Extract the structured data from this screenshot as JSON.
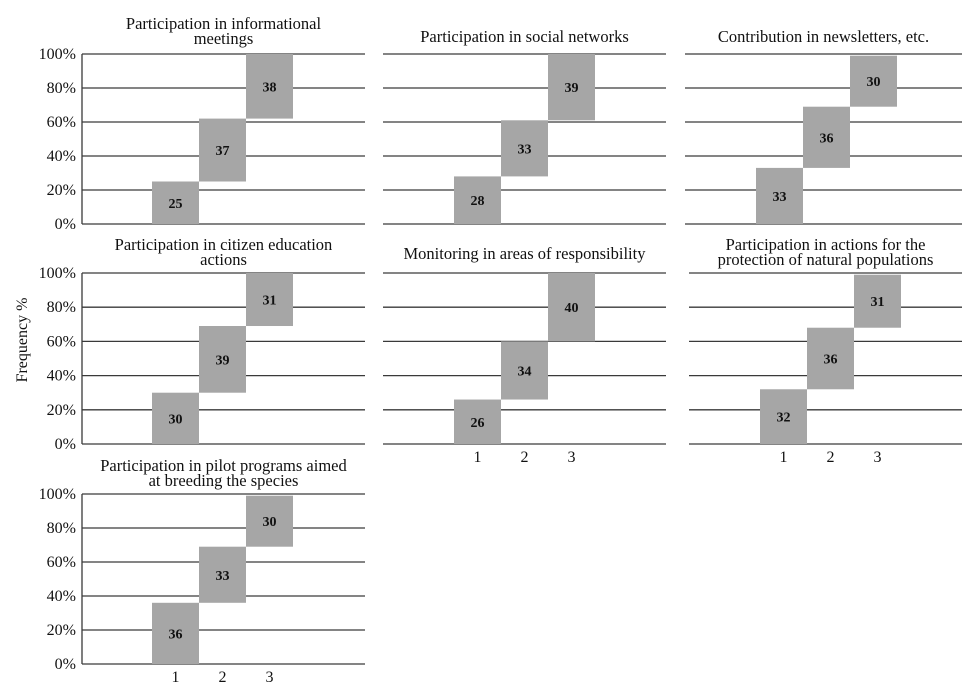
{
  "y_axis_label": "Frequency %",
  "chart_data": [
    {
      "type": "bar",
      "title": "Participation in informational meetings",
      "categories": [
        "1",
        "2",
        "3"
      ],
      "values": [
        25,
        37,
        38
      ],
      "yticks": [
        "0%",
        "20%",
        "40%",
        "60%",
        "80%",
        "100%"
      ],
      "xticks_shown": false,
      "ylim": [
        0,
        100
      ],
      "grid": true
    },
    {
      "type": "bar",
      "title": "Participation in social networks",
      "categories": [
        "1",
        "2",
        "3"
      ],
      "values": [
        28,
        33,
        39
      ],
      "xticks_shown": false,
      "ylim": [
        0,
        100
      ],
      "grid": true
    },
    {
      "type": "bar",
      "title": "Contribution in newsletters, etc.",
      "categories": [
        "1",
        "2",
        "3"
      ],
      "values": [
        33,
        36,
        30
      ],
      "xticks_shown": false,
      "ylim": [
        0,
        100
      ],
      "grid": true
    },
    {
      "type": "bar",
      "title": "Participation in citizen education actions",
      "categories": [
        "1",
        "2",
        "3"
      ],
      "values": [
        30,
        39,
        31
      ],
      "yticks": [
        "0%",
        "20%",
        "40%",
        "60%",
        "80%",
        "100%"
      ],
      "xticks_shown": false,
      "ylim": [
        0,
        100
      ],
      "grid": true
    },
    {
      "type": "bar",
      "title": "Monitoring in areas of responsibility",
      "categories": [
        "1",
        "2",
        "3"
      ],
      "values": [
        26,
        34,
        40
      ],
      "xticks_shown": true,
      "ylim": [
        0,
        100
      ],
      "grid": true
    },
    {
      "type": "bar",
      "title": "Participation in actions for the protection of natural populations",
      "categories": [
        "1",
        "2",
        "3"
      ],
      "values": [
        32,
        36,
        31
      ],
      "xticks_shown": true,
      "ylim": [
        0,
        100
      ],
      "grid": true
    },
    {
      "type": "bar",
      "title": "Participation in pilot programs aimed at breeding the species",
      "categories": [
        "1",
        "2",
        "3"
      ],
      "values": [
        36,
        33,
        30
      ],
      "yticks": [
        "0%",
        "20%",
        "40%",
        "60%",
        "80%",
        "100%"
      ],
      "xticks_shown": true,
      "ylim": [
        0,
        100
      ],
      "grid": true
    }
  ]
}
